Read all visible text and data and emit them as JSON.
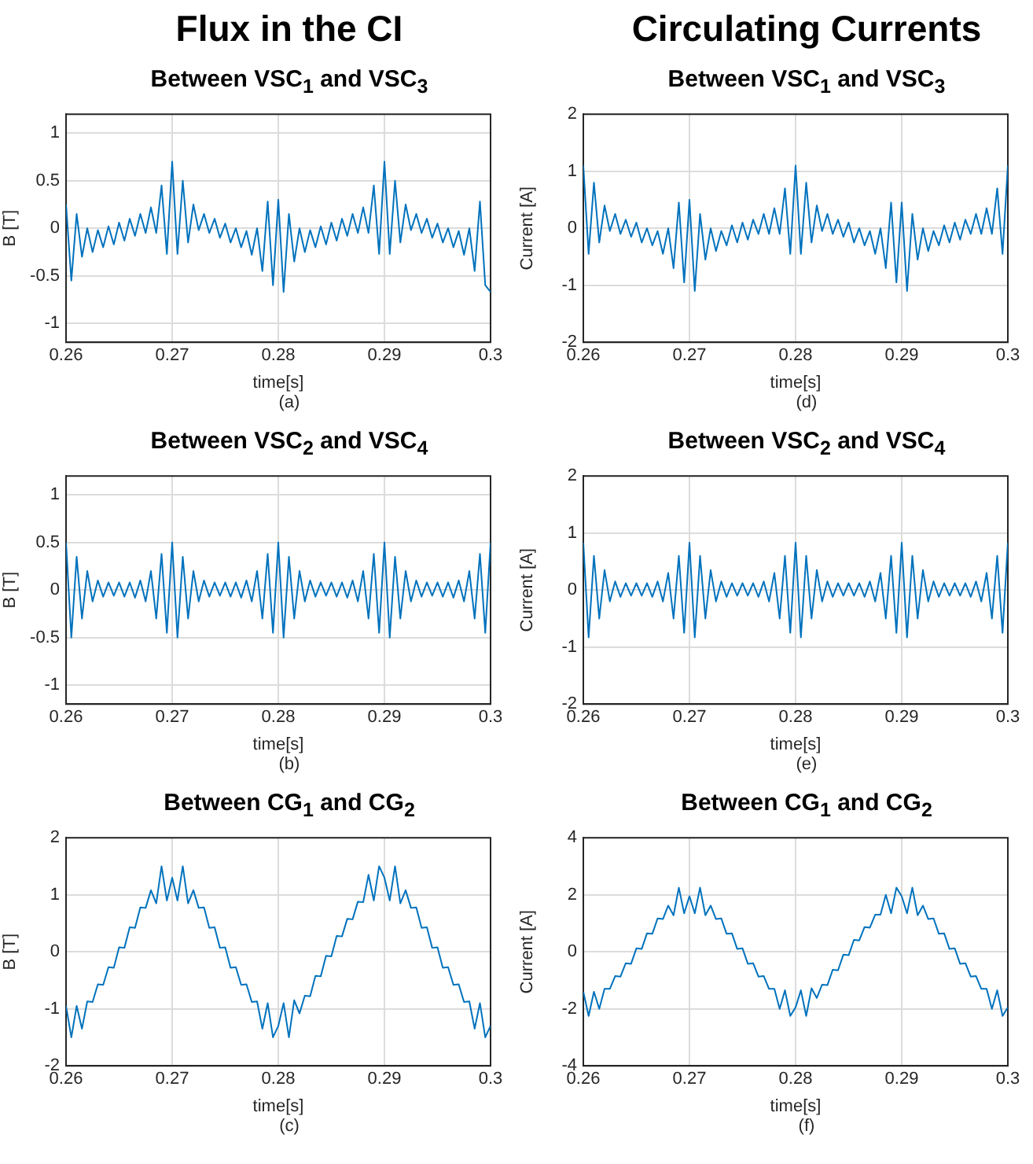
{
  "chart_data": [
    {
      "type": "line",
      "title": "Flux in the CI",
      "subtitle": "Between VSC$_{1}$ and VSC$_{3}$",
      "xlabel": "time[s]",
      "ylabel": "B [T]",
      "annotations": [
        "(a)"
      ],
      "x": [
        0.26,
        0.2605,
        0.261,
        0.2615,
        0.262,
        0.2625,
        0.263,
        0.2635,
        0.264,
        0.2645,
        0.265,
        0.2655,
        0.266,
        0.2665,
        0.267,
        0.2675,
        0.268,
        0.2685,
        0.269,
        0.2695,
        0.27,
        0.2705,
        0.271,
        0.2715,
        0.272,
        0.2725,
        0.273,
        0.2735,
        0.274,
        0.2745,
        0.275,
        0.2755,
        0.276,
        0.2765,
        0.277,
        0.2775,
        0.278,
        0.2785,
        0.279,
        0.2795,
        0.28,
        0.2805,
        0.281,
        0.2815,
        0.282,
        0.2825,
        0.283,
        0.2835,
        0.284,
        0.2845,
        0.285,
        0.2855,
        0.286,
        0.2865,
        0.287,
        0.2875,
        0.288,
        0.2885,
        0.289,
        0.2895,
        0.29,
        0.2905,
        0.291,
        0.2915,
        0.292,
        0.2925,
        0.293,
        0.2935,
        0.294,
        0.2945,
        0.295,
        0.2955,
        0.296,
        0.2965,
        0.297,
        0.2975,
        0.298,
        0.2985,
        0.299,
        0.2995,
        0.3
      ],
      "series": [
        {
          "color": "#0072bd",
          "values": [
            0.25,
            -0.55,
            0.15,
            -0.3,
            0.0,
            -0.25,
            -0.02,
            -0.2,
            0.02,
            -0.17,
            0.06,
            -0.13,
            0.1,
            -0.08,
            0.15,
            -0.05,
            0.22,
            -0.05,
            0.45,
            -0.27,
            0.7,
            -0.27,
            0.5,
            -0.15,
            0.25,
            -0.02,
            0.15,
            -0.05,
            0.1,
            -0.1,
            0.05,
            -0.15,
            0.0,
            -0.2,
            -0.03,
            -0.28,
            0.0,
            -0.45,
            0.28,
            -0.6,
            0.3,
            -0.67,
            0.15,
            -0.35,
            0.0,
            -0.25,
            -0.02,
            -0.2,
            0.02,
            -0.17,
            0.06,
            -0.13,
            0.1,
            -0.08,
            0.15,
            -0.05,
            0.22,
            -0.05,
            0.45,
            -0.27,
            0.7,
            -0.27,
            0.5,
            -0.15,
            0.25,
            -0.02,
            0.15,
            -0.05,
            0.1,
            -0.1,
            0.05,
            -0.15,
            0.0,
            -0.2,
            -0.03,
            -0.28,
            0.0,
            -0.45,
            0.28,
            -0.6,
            -0.67
          ]
        }
      ],
      "xlim": [
        0.26,
        0.3
      ],
      "xticks": [
        0.26,
        0.27,
        0.28,
        0.29,
        0.3
      ],
      "ylim": [
        -1.2,
        1.2
      ],
      "yticks": [
        -1,
        -0.5,
        0,
        0.5,
        1
      ],
      "grid": true,
      "legend": false,
      "marker": "none",
      "line_style": "solid"
    },
    {
      "type": "line",
      "title": "Circulating Currents",
      "subtitle": "Between VSC$_{1}$ and VSC$_{3}$",
      "xlabel": "time[s]",
      "ylabel": "Current [A]",
      "annotations": [
        "(d)"
      ],
      "x": [
        0.26,
        0.2605,
        0.261,
        0.2615,
        0.262,
        0.2625,
        0.263,
        0.2635,
        0.264,
        0.2645,
        0.265,
        0.2655,
        0.266,
        0.2665,
        0.267,
        0.2675,
        0.268,
        0.2685,
        0.269,
        0.2695,
        0.27,
        0.2705,
        0.271,
        0.2715,
        0.272,
        0.2725,
        0.273,
        0.2735,
        0.274,
        0.2745,
        0.275,
        0.2755,
        0.276,
        0.2765,
        0.277,
        0.2775,
        0.278,
        0.2785,
        0.279,
        0.2795,
        0.28,
        0.2805,
        0.281,
        0.2815,
        0.282,
        0.2825,
        0.283,
        0.2835,
        0.284,
        0.2845,
        0.285,
        0.2855,
        0.286,
        0.2865,
        0.287,
        0.2875,
        0.288,
        0.2885,
        0.289,
        0.2895,
        0.29,
        0.2905,
        0.291,
        0.2915,
        0.292,
        0.2925,
        0.293,
        0.2935,
        0.294,
        0.2945,
        0.295,
        0.2955,
        0.296,
        0.2965,
        0.297,
        0.2975,
        0.298,
        0.2985,
        0.299,
        0.2995,
        0.3
      ],
      "series": [
        {
          "color": "#0072bd",
          "values": [
            1.1,
            -0.45,
            0.8,
            -0.25,
            0.4,
            -0.05,
            0.25,
            -0.1,
            0.15,
            -0.15,
            0.1,
            -0.25,
            0.0,
            -0.3,
            -0.05,
            -0.45,
            0.0,
            -0.7,
            0.45,
            -0.95,
            0.5,
            -1.1,
            0.25,
            -0.55,
            0.0,
            -0.4,
            -0.05,
            -0.3,
            0.05,
            -0.25,
            0.1,
            -0.2,
            0.15,
            -0.1,
            0.25,
            -0.1,
            0.35,
            -0.1,
            0.7,
            -0.45,
            1.1,
            -0.45,
            0.8,
            -0.25,
            0.4,
            -0.05,
            0.25,
            -0.1,
            0.15,
            -0.15,
            0.1,
            -0.25,
            0.0,
            -0.3,
            -0.05,
            -0.45,
            0.0,
            -0.7,
            0.45,
            -0.95,
            0.45,
            -1.1,
            0.25,
            -0.55,
            0.0,
            -0.4,
            -0.05,
            -0.3,
            0.05,
            -0.25,
            0.1,
            -0.2,
            0.15,
            -0.1,
            0.25,
            -0.1,
            0.35,
            -0.1,
            0.7,
            -0.45,
            1.1
          ]
        }
      ],
      "xlim": [
        0.26,
        0.3
      ],
      "xticks": [
        0.26,
        0.27,
        0.28,
        0.29,
        0.3
      ],
      "ylim": [
        -2,
        2
      ],
      "yticks": [
        -2,
        -1,
        0,
        1,
        2
      ],
      "grid": true,
      "legend": false,
      "marker": "none",
      "line_style": "solid"
    },
    {
      "type": "line",
      "title": "Between VSC$_{2}$ and VSC$_{4}$",
      "xlabel": "time[s]",
      "ylabel": "B [T]",
      "annotations": [
        "(b)"
      ],
      "x": [
        0.26,
        0.2605,
        0.261,
        0.2615,
        0.262,
        0.2625,
        0.263,
        0.2635,
        0.264,
        0.2645,
        0.265,
        0.2655,
        0.266,
        0.2665,
        0.267,
        0.2675,
        0.268,
        0.2685,
        0.269,
        0.2695,
        0.27,
        0.2705,
        0.271,
        0.2715,
        0.272,
        0.2725,
        0.273,
        0.2735,
        0.274,
        0.2745,
        0.275,
        0.2755,
        0.276,
        0.2765,
        0.277,
        0.2775,
        0.278,
        0.2785,
        0.279,
        0.2795,
        0.28,
        0.2805,
        0.281,
        0.2815,
        0.282,
        0.2825,
        0.283,
        0.2835,
        0.284,
        0.2845,
        0.285,
        0.2855,
        0.286,
        0.2865,
        0.287,
        0.2875,
        0.288,
        0.2885,
        0.289,
        0.2895,
        0.29,
        0.2905,
        0.291,
        0.2915,
        0.292,
        0.2925,
        0.293,
        0.2935,
        0.294,
        0.2945,
        0.295,
        0.2955,
        0.296,
        0.2965,
        0.297,
        0.2975,
        0.298,
        0.2985,
        0.299,
        0.2995,
        0.3
      ],
      "series": [
        {
          "color": "#0072bd",
          "values": [
            0.5,
            -0.5,
            0.35,
            -0.3,
            0.2,
            -0.12,
            0.1,
            -0.07,
            0.08,
            -0.06,
            0.08,
            -0.07,
            0.08,
            -0.08,
            0.1,
            -0.12,
            0.2,
            -0.3,
            0.38,
            -0.45,
            0.5,
            -0.5,
            0.35,
            -0.3,
            0.2,
            -0.12,
            0.1,
            -0.07,
            0.08,
            -0.06,
            0.08,
            -0.07,
            0.08,
            -0.08,
            0.1,
            -0.12,
            0.2,
            -0.3,
            0.38,
            -0.45,
            0.5,
            -0.5,
            0.35,
            -0.3,
            0.2,
            -0.12,
            0.1,
            -0.07,
            0.08,
            -0.06,
            0.08,
            -0.07,
            0.08,
            -0.08,
            0.1,
            -0.12,
            0.2,
            -0.3,
            0.38,
            -0.45,
            0.5,
            -0.5,
            0.35,
            -0.3,
            0.2,
            -0.12,
            0.1,
            -0.07,
            0.08,
            -0.06,
            0.08,
            -0.07,
            0.08,
            -0.08,
            0.1,
            -0.12,
            0.2,
            -0.3,
            0.38,
            -0.45,
            0.5
          ]
        }
      ],
      "xlim": [
        0.26,
        0.3
      ],
      "xticks": [
        0.26,
        0.27,
        0.28,
        0.29,
        0.3
      ],
      "ylim": [
        -1.2,
        1.2
      ],
      "yticks": [
        -1,
        -0.5,
        0,
        0.5,
        1
      ],
      "grid": true,
      "legend": false,
      "marker": "none",
      "line_style": "solid"
    },
    {
      "type": "line",
      "title": "Between VSC$_{2}$ and VSC$_{4}$",
      "xlabel": "time[s]",
      "ylabel": "Current [A]",
      "annotations": [
        "(e)"
      ],
      "x": [
        0.26,
        0.2605,
        0.261,
        0.2615,
        0.262,
        0.2625,
        0.263,
        0.2635,
        0.264,
        0.2645,
        0.265,
        0.2655,
        0.266,
        0.2665,
        0.267,
        0.2675,
        0.268,
        0.2685,
        0.269,
        0.2695,
        0.27,
        0.2705,
        0.271,
        0.2715,
        0.272,
        0.2725,
        0.273,
        0.2735,
        0.274,
        0.2745,
        0.275,
        0.2755,
        0.276,
        0.2765,
        0.277,
        0.2775,
        0.278,
        0.2785,
        0.279,
        0.2795,
        0.28,
        0.2805,
        0.281,
        0.2815,
        0.282,
        0.2825,
        0.283,
        0.2835,
        0.284,
        0.2845,
        0.285,
        0.2855,
        0.286,
        0.2865,
        0.287,
        0.2875,
        0.288,
        0.2885,
        0.289,
        0.2895,
        0.29,
        0.2905,
        0.291,
        0.2915,
        0.292,
        0.2925,
        0.293,
        0.2935,
        0.294,
        0.2945,
        0.295,
        0.2955,
        0.296,
        0.2965,
        0.297,
        0.2975,
        0.298,
        0.2985,
        0.299,
        0.2995,
        0.3
      ],
      "series": [
        {
          "color": "#0072bd",
          "values": [
            0.83,
            -0.83,
            0.6,
            -0.5,
            0.35,
            -0.2,
            0.15,
            -0.12,
            0.12,
            -0.1,
            0.12,
            -0.1,
            0.12,
            -0.12,
            0.15,
            -0.2,
            0.3,
            -0.5,
            0.6,
            -0.75,
            0.83,
            -0.83,
            0.6,
            -0.5,
            0.35,
            -0.2,
            0.15,
            -0.12,
            0.12,
            -0.1,
            0.12,
            -0.1,
            0.12,
            -0.12,
            0.15,
            -0.2,
            0.3,
            -0.5,
            0.6,
            -0.75,
            0.83,
            -0.83,
            0.6,
            -0.5,
            0.35,
            -0.2,
            0.15,
            -0.12,
            0.12,
            -0.1,
            0.12,
            -0.1,
            0.12,
            -0.12,
            0.15,
            -0.2,
            0.3,
            -0.5,
            0.6,
            -0.75,
            0.83,
            -0.83,
            0.6,
            -0.5,
            0.35,
            -0.2,
            0.15,
            -0.12,
            0.12,
            -0.1,
            0.12,
            -0.1,
            0.12,
            -0.12,
            0.15,
            -0.2,
            0.3,
            -0.5,
            0.6,
            -0.75,
            0.83
          ]
        }
      ],
      "xlim": [
        0.26,
        0.3
      ],
      "xticks": [
        0.26,
        0.27,
        0.28,
        0.29,
        0.3
      ],
      "ylim": [
        -2,
        2
      ],
      "yticks": [
        -2,
        -1,
        0,
        1,
        2
      ],
      "grid": true,
      "legend": false,
      "marker": "none",
      "line_style": "solid"
    },
    {
      "type": "line",
      "title": "Between CG$_{1}$ and CG$_{2}$",
      "xlabel": "time[s]",
      "ylabel": "B [T]",
      "annotations": [
        "(c)"
      ],
      "x": [
        0.26,
        0.2605,
        0.261,
        0.2615,
        0.262,
        0.2625,
        0.263,
        0.2635,
        0.264,
        0.2645,
        0.265,
        0.2655,
        0.266,
        0.2665,
        0.267,
        0.2675,
        0.268,
        0.2685,
        0.269,
        0.2695,
        0.27,
        0.2705,
        0.271,
        0.2715,
        0.272,
        0.2725,
        0.273,
        0.2735,
        0.274,
        0.2745,
        0.275,
        0.2755,
        0.276,
        0.2765,
        0.277,
        0.2775,
        0.278,
        0.2785,
        0.279,
        0.2795,
        0.28,
        0.2805,
        0.281,
        0.2815,
        0.282,
        0.2825,
        0.283,
        0.2835,
        0.284,
        0.2845,
        0.285,
        0.2855,
        0.286,
        0.2865,
        0.287,
        0.2875,
        0.288,
        0.2885,
        0.289,
        0.2895,
        0.29,
        0.2905,
        0.291,
        0.2915,
        0.292,
        0.2925,
        0.293,
        0.2935,
        0.294,
        0.2945,
        0.295,
        0.2955,
        0.296,
        0.2965,
        0.297,
        0.2975,
        0.298,
        0.2985,
        0.299,
        0.2995,
        0.3
      ],
      "series": [
        {
          "color": "#0072bd",
          "values": [
            -0.95,
            -1.5,
            -0.95,
            -1.35,
            -0.87,
            -0.88,
            -0.57,
            -0.58,
            -0.27,
            -0.28,
            0.08,
            0.07,
            0.43,
            0.42,
            0.78,
            0.77,
            1.08,
            0.85,
            1.5,
            0.9,
            1.3,
            0.9,
            1.5,
            0.85,
            1.08,
            0.77,
            0.78,
            0.42,
            0.43,
            0.07,
            0.08,
            -0.28,
            -0.27,
            -0.58,
            -0.57,
            -0.88,
            -0.87,
            -1.35,
            -0.9,
            -1.5,
            -1.3,
            -0.9,
            -1.5,
            -0.85,
            -1.08,
            -0.77,
            -0.78,
            -0.42,
            -0.43,
            -0.07,
            -0.08,
            0.28,
            0.27,
            0.58,
            0.57,
            0.88,
            0.87,
            1.35,
            0.9,
            1.5,
            1.3,
            0.9,
            1.5,
            0.85,
            1.08,
            0.77,
            0.78,
            0.42,
            0.43,
            0.07,
            0.08,
            -0.28,
            -0.27,
            -0.58,
            -0.57,
            -0.88,
            -0.87,
            -1.35,
            -0.9,
            -1.5,
            -1.3
          ]
        }
      ],
      "xlim": [
        0.26,
        0.3
      ],
      "xticks": [
        0.26,
        0.27,
        0.28,
        0.29,
        0.3
      ],
      "ylim": [
        -2,
        2
      ],
      "yticks": [
        -2,
        -1,
        0,
        1,
        2
      ],
      "grid": true,
      "legend": false,
      "marker": "none",
      "line_style": "solid"
    },
    {
      "type": "line",
      "title": "Between CG$_{1}$ and CG$_{2}$",
      "xlabel": "time[s]",
      "ylabel": "Current [A]",
      "annotations": [
        "(f)"
      ],
      "x": [
        0.26,
        0.2605,
        0.261,
        0.2615,
        0.262,
        0.2625,
        0.263,
        0.2635,
        0.264,
        0.2645,
        0.265,
        0.2655,
        0.266,
        0.2665,
        0.267,
        0.2675,
        0.268,
        0.2685,
        0.269,
        0.2695,
        0.27,
        0.2705,
        0.271,
        0.2715,
        0.272,
        0.2725,
        0.273,
        0.2735,
        0.274,
        0.2745,
        0.275,
        0.2755,
        0.276,
        0.2765,
        0.277,
        0.2775,
        0.278,
        0.2785,
        0.279,
        0.2795,
        0.28,
        0.2805,
        0.281,
        0.2815,
        0.282,
        0.2825,
        0.283,
        0.2835,
        0.284,
        0.2845,
        0.285,
        0.2855,
        0.286,
        0.2865,
        0.287,
        0.2875,
        0.288,
        0.2885,
        0.289,
        0.2895,
        0.29,
        0.2905,
        0.291,
        0.2915,
        0.292,
        0.2925,
        0.293,
        0.2935,
        0.294,
        0.2945,
        0.295,
        0.2955,
        0.296,
        0.2965,
        0.297,
        0.2975,
        0.298,
        0.2985,
        0.299,
        0.2995,
        0.3
      ],
      "series": [
        {
          "color": "#0072bd",
          "values": [
            -1.4,
            -2.25,
            -1.4,
            -2.0,
            -1.3,
            -1.3,
            -0.85,
            -0.87,
            -0.4,
            -0.42,
            0.12,
            0.1,
            0.65,
            0.63,
            1.17,
            1.15,
            1.62,
            1.28,
            2.25,
            1.35,
            1.95,
            1.35,
            2.25,
            1.28,
            1.62,
            1.15,
            1.17,
            0.63,
            0.65,
            0.1,
            0.12,
            -0.42,
            -0.4,
            -0.87,
            -0.85,
            -1.3,
            -1.3,
            -2.0,
            -1.35,
            -2.25,
            -1.95,
            -1.35,
            -2.25,
            -1.28,
            -1.62,
            -1.15,
            -1.17,
            -0.63,
            -0.65,
            -0.1,
            -0.12,
            0.42,
            0.4,
            0.87,
            0.85,
            1.3,
            1.3,
            2.0,
            1.35,
            2.25,
            1.95,
            1.35,
            2.25,
            1.28,
            1.62,
            1.15,
            1.17,
            0.63,
            0.65,
            0.1,
            0.12,
            -0.42,
            -0.4,
            -0.87,
            -0.85,
            -1.3,
            -1.3,
            -2.0,
            -1.35,
            -2.25,
            -1.95
          ]
        }
      ],
      "xlim": [
        0.26,
        0.3
      ],
      "xticks": [
        0.26,
        0.27,
        0.28,
        0.29,
        0.3
      ],
      "ylim": [
        -4,
        4
      ],
      "yticks": [
        -4,
        -2,
        0,
        2,
        4
      ],
      "grid": true,
      "legend": false,
      "marker": "none",
      "line_style": "solid"
    }
  ]
}
